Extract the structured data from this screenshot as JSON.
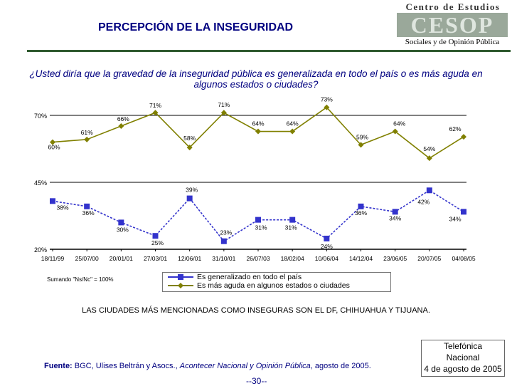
{
  "header": {
    "title": "PERCEPCIÓN DE LA INSEGURIDAD"
  },
  "logo": {
    "top": "Centro de Estudios",
    "mark": "CESOP",
    "sub": "Sociales y de Opinión Pública"
  },
  "question": "¿Usted diría que la gravedad de la inseguridad pública es generalizada en todo el país o es más aguda en algunos estados o ciudades?",
  "note": "Sumando \"Ns/Nc\" = 100%",
  "caption": "LAS CIUDADES MÁS MENCIONADAS COMO INSEGURAS SON EL DF, CHIHUAHUA Y TIJUANA.",
  "source": {
    "label": "Fuente:",
    "text1": " BGC, Ulises Beltrán y Asocs., ",
    "pub": "Acontecer Nacional y Opinión Pública",
    "text2": ", agosto de 2005."
  },
  "page_number": "--30--",
  "stamp": {
    "line1": "Telefónica",
    "line2": "Nacional",
    "line3": "4 de agosto de 2005"
  },
  "colors": {
    "title": "#000080",
    "series_blue": "#3333cc",
    "series_olive": "#808000",
    "gridline": "#000000"
  },
  "chart_data": {
    "type": "line",
    "categories": [
      "18/11/99",
      "25/07/00",
      "20/01/01",
      "27/03/01",
      "12/06/01",
      "31/10/01",
      "26/07/03",
      "18/02/04",
      "10/06/04",
      "14/12/04",
      "23/06/05",
      "20/07/05",
      "04/08/05"
    ],
    "y_ticks": [
      "70%",
      "45%",
      "20%"
    ],
    "ylim": [
      20,
      70
    ],
    "series": [
      {
        "name": "Es generalizado en todo el país",
        "values": [
          38,
          36,
          30,
          25,
          39,
          23,
          31,
          31,
          24,
          36,
          34,
          42,
          34
        ],
        "labels": [
          "38%",
          "36%",
          "30%",
          "25%",
          "39%",
          "23%",
          "31%",
          "31%",
          "24%",
          "36%",
          "34%",
          "42%",
          "34%"
        ]
      },
      {
        "name": "Es más aguda en algunos estados o ciudades",
        "values": [
          60,
          61,
          66,
          71,
          58,
          71,
          64,
          64,
          73,
          59,
          64,
          54,
          62
        ],
        "labels": [
          "60%",
          "61%",
          "66%",
          "71%",
          "58%",
          "71%",
          "64%",
          "64%",
          "73%",
          "59%",
          "64%",
          "54%",
          "62%"
        ]
      }
    ]
  }
}
